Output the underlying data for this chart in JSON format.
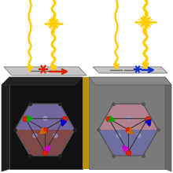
{
  "laser_color": "#ffcc00",
  "pol_left_color": "#dd2200",
  "pol_right_color": "#1133cc",
  "left_box_color": "#111111",
  "right_box_color": "#7a7a7a",
  "divider_color": "#b8900a",
  "plate_color": "#b8b8b8",
  "hex_left_upper": "#c07070",
  "hex_left_lower": "#8888cc",
  "hex_right_upper": "#8888cc",
  "hex_right_lower": "#c07070",
  "atom_color": "#dd2200",
  "ghost_color": "#aaaacc"
}
